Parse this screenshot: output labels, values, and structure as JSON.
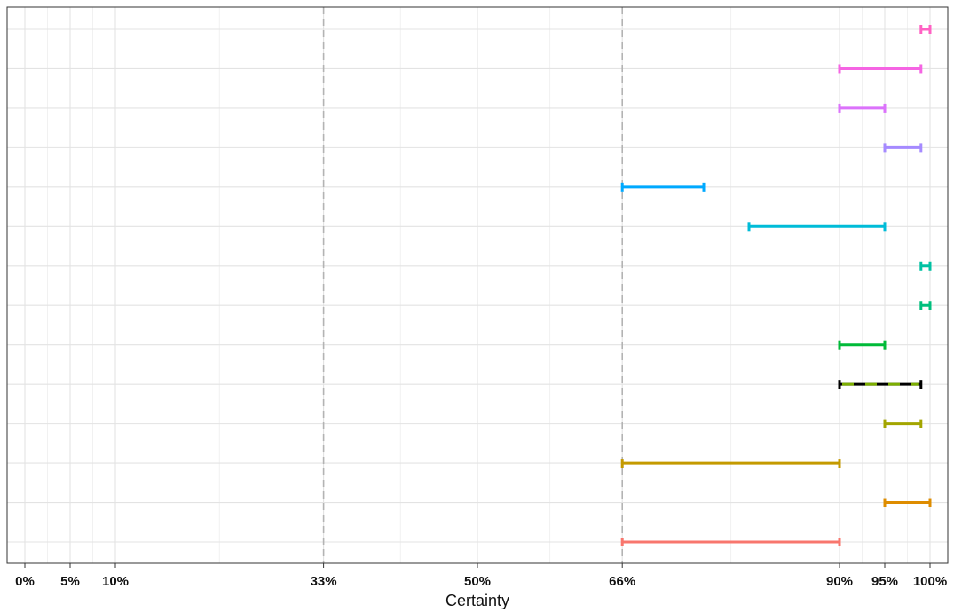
{
  "chart_data": {
    "type": "interval",
    "xlabel": "Certainty",
    "xlim": [
      0,
      100
    ],
    "x_ticks": [
      {
        "value": 0,
        "label": "0%"
      },
      {
        "value": 5,
        "label": "5%"
      },
      {
        "value": 10,
        "label": "10%"
      },
      {
        "value": 33,
        "label": "33%"
      },
      {
        "value": 50,
        "label": "50%"
      },
      {
        "value": 66,
        "label": "66%"
      },
      {
        "value": 90,
        "label": "90%"
      },
      {
        "value": 95,
        "label": "95%"
      },
      {
        "value": 100,
        "label": "100%"
      }
    ],
    "reference_lines": [
      33,
      66
    ],
    "grid": true,
    "legend": "none",
    "rows": [
      {
        "low": 99,
        "high": 100,
        "color": "#FF61C3"
      },
      {
        "low": 90,
        "high": 99,
        "color": "#F564E3"
      },
      {
        "low": 90,
        "high": 95,
        "color": "#DB72FB"
      },
      {
        "low": 95,
        "high": 99,
        "color": "#A58AFF"
      },
      {
        "low": 66,
        "high": 75,
        "color": "#00A9FF"
      },
      {
        "low": 80,
        "high": 95,
        "color": "#00BCD8"
      },
      {
        "low": 99,
        "high": 100,
        "color": "#00C1A3"
      },
      {
        "low": 99,
        "high": 100,
        "color": "#00BF7D"
      },
      {
        "low": 90,
        "high": 95,
        "color": "#00BA38"
      },
      {
        "low": 90,
        "high": 99,
        "color": "#000000",
        "dashed_color": "#7CAE00"
      },
      {
        "low": 95,
        "high": 99,
        "color": "#A3A500"
      },
      {
        "low": 66,
        "high": 90,
        "color": "#C49A00"
      },
      {
        "low": 95,
        "high": 100,
        "color": "#DE8C00"
      },
      {
        "low": 66,
        "high": 90,
        "color": "#F8766D"
      }
    ]
  }
}
